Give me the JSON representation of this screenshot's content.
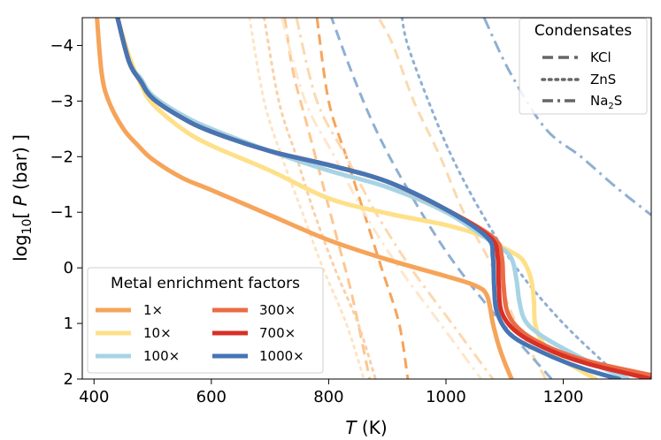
{
  "chart_data": {
    "type": "line",
    "xlabel_main": "T",
    "xlabel_unit": " (K)",
    "ylabel_pre": "log",
    "ylabel_sub": "10",
    "ylabel_mid": "[ ",
    "ylabel_var": "P",
    "ylabel_post": " (bar) ]",
    "xlim": [
      380,
      1350
    ],
    "ylim": [
      -4.5,
      2
    ],
    "x_ticks": [
      {
        "value": 400,
        "label": "400"
      },
      {
        "value": 600,
        "label": "600"
      },
      {
        "value": 800,
        "label": "800"
      },
      {
        "value": 1000,
        "label": "1000"
      },
      {
        "value": 1200,
        "label": "1200"
      }
    ],
    "y_ticks": [
      {
        "value": -4,
        "label": "−4"
      },
      {
        "value": -3,
        "label": "−3"
      },
      {
        "value": -2,
        "label": "−2"
      },
      {
        "value": -1,
        "label": "−1"
      },
      {
        "value": 0,
        "label": "0"
      },
      {
        "value": 1,
        "label": "1"
      },
      {
        "value": 2,
        "label": "2"
      }
    ],
    "series": [
      {
        "name": "1×",
        "color": "#f6a45a",
        "points": [
          [
            405,
            -4.5
          ],
          [
            413,
            -3.5
          ],
          [
            425,
            -3.0
          ],
          [
            450,
            -2.5
          ],
          [
            475,
            -2.2
          ],
          [
            500,
            -1.95
          ],
          [
            550,
            -1.62
          ],
          [
            600,
            -1.4
          ],
          [
            700,
            -0.95
          ],
          [
            800,
            -0.5
          ],
          [
            900,
            -0.15
          ],
          [
            1000,
            0.15
          ],
          [
            1050,
            0.32
          ],
          [
            1070,
            0.5
          ],
          [
            1080,
            1.0
          ],
          [
            1090,
            1.4
          ],
          [
            1100,
            1.7
          ],
          [
            1112,
            2.0
          ]
        ]
      },
      {
        "name": "10×",
        "color": "#fee089",
        "points": [
          [
            440,
            -4.5
          ],
          [
            460,
            -3.8
          ],
          [
            480,
            -3.3
          ],
          [
            500,
            -2.95
          ],
          [
            550,
            -2.5
          ],
          [
            600,
            -2.2
          ],
          [
            700,
            -1.75
          ],
          [
            800,
            -1.25
          ],
          [
            900,
            -0.98
          ],
          [
            1000,
            -0.77
          ],
          [
            1060,
            -0.58
          ],
          [
            1100,
            -0.35
          ],
          [
            1130,
            -0.15
          ],
          [
            1145,
            0.2
          ],
          [
            1150,
            0.6
          ],
          [
            1152,
            1.0
          ],
          [
            1165,
            1.35
          ],
          [
            1190,
            1.6
          ],
          [
            1230,
            1.85
          ],
          [
            1255,
            2.0
          ]
        ]
      },
      {
        "name": "100×",
        "color": "#a7d4e5",
        "points": [
          [
            440,
            -4.5
          ],
          [
            460,
            -3.7
          ],
          [
            480,
            -3.4
          ],
          [
            500,
            -3.1
          ],
          [
            550,
            -2.75
          ],
          [
            600,
            -2.5
          ],
          [
            700,
            -2.1
          ],
          [
            800,
            -1.75
          ],
          [
            900,
            -1.45
          ],
          [
            1000,
            -1.0
          ],
          [
            1080,
            -0.45
          ],
          [
            1110,
            -0.2
          ],
          [
            1120,
            0.2
          ],
          [
            1125,
            0.6
          ],
          [
            1135,
            0.95
          ],
          [
            1160,
            1.2
          ],
          [
            1200,
            1.45
          ],
          [
            1250,
            1.72
          ],
          [
            1300,
            1.95
          ],
          [
            1310,
            2.0
          ]
        ]
      },
      {
        "name": "300×",
        "color": "#eb6c45",
        "points": [
          [
            440,
            -4.5
          ],
          [
            460,
            -3.7
          ],
          [
            480,
            -3.35
          ],
          [
            500,
            -3.05
          ],
          [
            550,
            -2.7
          ],
          [
            600,
            -2.45
          ],
          [
            700,
            -2.1
          ],
          [
            800,
            -1.85
          ],
          [
            900,
            -1.55
          ],
          [
            1000,
            -1.05
          ],
          [
            1080,
            -0.55
          ],
          [
            1095,
            -0.2
          ],
          [
            1098,
            0.3
          ],
          [
            1105,
            0.8
          ],
          [
            1130,
            1.15
          ],
          [
            1180,
            1.45
          ],
          [
            1250,
            1.7
          ],
          [
            1350,
            1.93
          ]
        ]
      },
      {
        "name": "700×",
        "color": "#d73027",
        "points": [
          [
            440,
            -4.5
          ],
          [
            460,
            -3.7
          ],
          [
            480,
            -3.35
          ],
          [
            500,
            -3.05
          ],
          [
            550,
            -2.7
          ],
          [
            600,
            -2.45
          ],
          [
            700,
            -2.1
          ],
          [
            800,
            -1.85
          ],
          [
            900,
            -1.55
          ],
          [
            1000,
            -1.05
          ],
          [
            1075,
            -0.55
          ],
          [
            1088,
            -0.2
          ],
          [
            1090,
            0.3
          ],
          [
            1095,
            0.8
          ],
          [
            1120,
            1.15
          ],
          [
            1170,
            1.45
          ],
          [
            1240,
            1.72
          ],
          [
            1350,
            2.0
          ]
        ]
      },
      {
        "name": "1000×",
        "color": "#4575b4",
        "points": [
          [
            440,
            -4.5
          ],
          [
            460,
            -3.7
          ],
          [
            480,
            -3.35
          ],
          [
            500,
            -3.05
          ],
          [
            550,
            -2.7
          ],
          [
            600,
            -2.45
          ],
          [
            700,
            -2.1
          ],
          [
            800,
            -1.85
          ],
          [
            900,
            -1.55
          ],
          [
            1000,
            -1.05
          ],
          [
            1070,
            -0.55
          ],
          [
            1080,
            -0.2
          ],
          [
            1082,
            0.3
          ],
          [
            1087,
            0.8
          ],
          [
            1110,
            1.2
          ],
          [
            1160,
            1.5
          ],
          [
            1230,
            1.8
          ],
          [
            1295,
            2.0
          ]
        ]
      }
    ],
    "condensate_curves": [
      {
        "name": "KCl",
        "style": "dashed",
        "metal": "1×",
        "color": "#f6a45a",
        "points": [
          [
            780,
            -4.5
          ],
          [
            800,
            -3.0
          ],
          [
            830,
            -2.0
          ],
          [
            860,
            -1.0
          ],
          [
            890,
            0.0
          ],
          [
            920,
            1.0
          ],
          [
            935,
            2.0
          ]
        ]
      },
      {
        "name": "KCl",
        "style": "dashed",
        "metal": "10×",
        "color": "#fdc690",
        "points": [
          [
            725,
            -4.5
          ],
          [
            740,
            -3.5
          ],
          [
            765,
            -2.5
          ],
          [
            790,
            -1.5
          ],
          [
            815,
            -0.5
          ],
          [
            840,
            0.5
          ],
          [
            870,
            2.0
          ]
        ]
      },
      {
        "name": "KCl",
        "style": "dashed",
        "metal": "100×",
        "color": "#fbd9b0",
        "points": [
          [
            1170,
            2.0
          ],
          [
            1120,
            1.0
          ],
          [
            1080,
            0.0
          ],
          [
            1030,
            -1.0
          ],
          [
            990,
            -2.0
          ],
          [
            945,
            -3.0
          ],
          [
            910,
            -4.0
          ],
          [
            885,
            -4.5
          ]
        ]
      },
      {
        "name": "KCl",
        "style": "dashed",
        "metal": "1000×",
        "color": "#8fafd3",
        "points": [
          [
            1180,
            2.0
          ],
          [
            1080,
            0.8
          ],
          [
            1000,
            -0.3
          ],
          [
            930,
            -1.5
          ],
          [
            880,
            -2.5
          ],
          [
            840,
            -3.5
          ],
          [
            805,
            -4.5
          ]
        ]
      },
      {
        "name": "ZnS",
        "style": "dotted",
        "metal": "1×",
        "color": "#fbd0a6",
        "points": [
          [
            690,
            -4.5
          ],
          [
            715,
            -3.0
          ],
          [
            745,
            -2.0
          ],
          [
            775,
            -1.0
          ],
          [
            810,
            0.0
          ],
          [
            850,
            1.0
          ],
          [
            880,
            2.0
          ]
        ]
      },
      {
        "name": "ZnS",
        "style": "dotted",
        "metal": "10×",
        "color": "#fde4c4",
        "points": [
          [
            665,
            -4.5
          ],
          [
            690,
            -3.0
          ],
          [
            720,
            -2.0
          ],
          [
            755,
            -1.0
          ],
          [
            790,
            0.0
          ],
          [
            830,
            1.0
          ],
          [
            860,
            2.0
          ]
        ]
      },
      {
        "name": "ZnS",
        "style": "dotted",
        "metal": "1000×",
        "color": "#8fafd3",
        "points": [
          [
            1300,
            2.0
          ],
          [
            1200,
            1.0
          ],
          [
            1120,
            0.0
          ],
          [
            1060,
            -1.0
          ],
          [
            1010,
            -2.0
          ],
          [
            970,
            -3.0
          ],
          [
            935,
            -4.0
          ],
          [
            925,
            -4.5
          ]
        ]
      },
      {
        "name": "Na₂S",
        "style": "dashdot",
        "metal": "1×",
        "color": "#fbd9b0",
        "points": [
          [
            745,
            -4.5
          ],
          [
            780,
            -3.0
          ],
          [
            830,
            -2.0
          ],
          [
            880,
            -1.0
          ],
          [
            940,
            0.0
          ],
          [
            1010,
            1.0
          ],
          [
            1080,
            2.0
          ]
        ]
      },
      {
        "name": "Na₂S",
        "style": "dashdot",
        "metal": "10×",
        "color": "#fde7cc",
        "points": [
          [
            720,
            -4.5
          ],
          [
            760,
            -3.0
          ],
          [
            810,
            -2.0
          ],
          [
            860,
            -1.0
          ],
          [
            920,
            0.0
          ],
          [
            990,
            1.0
          ],
          [
            1060,
            2.0
          ]
        ]
      },
      {
        "name": "Na₂S",
        "style": "dashdot",
        "metal": "1000×",
        "color": "#8fafd3",
        "points": [
          [
            1065,
            -4.5
          ],
          [
            1110,
            -3.5
          ],
          [
            1170,
            -2.5
          ],
          [
            1230,
            -2.0
          ],
          [
            1290,
            -1.45
          ],
          [
            1350,
            -0.95
          ]
        ]
      }
    ],
    "legend_condensates": {
      "title": "Condensates",
      "position": "top-right",
      "items": [
        {
          "label": "KCl",
          "style": "dashed"
        },
        {
          "label": "ZnS",
          "style": "dotted"
        },
        {
          "label_main": "Na",
          "label_sub": "2",
          "label_tail": "S",
          "style": "dashdot"
        }
      ]
    },
    "legend_metal": {
      "title": "Metal enrichment factors",
      "position": "lower-left",
      "items": [
        {
          "label": "1×",
          "color": "#f6a45a"
        },
        {
          "label": "10×",
          "color": "#fee089"
        },
        {
          "label": "100×",
          "color": "#a7d4e5"
        },
        {
          "label": "300×",
          "color": "#eb6c45"
        },
        {
          "label": "700×",
          "color": "#d73027"
        },
        {
          "label": "1000×",
          "color": "#4575b4"
        }
      ]
    }
  }
}
